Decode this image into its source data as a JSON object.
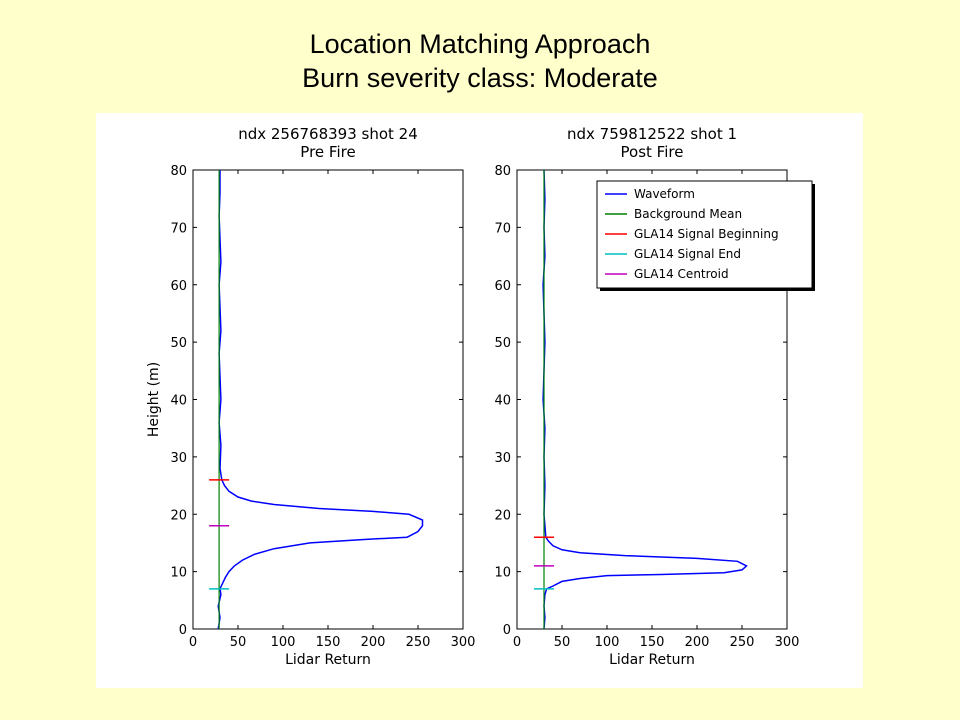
{
  "slide": {
    "title_line1": "Location Matching Approach",
    "title_line2": "Burn severity class: Moderate"
  },
  "colors": {
    "waveform": "#0000ff",
    "background_mean": "#008000",
    "signal_beginning": "#ff0000",
    "signal_end": "#00bfbf",
    "centroid": "#bf00bf"
  },
  "chart_data": [
    {
      "type": "line",
      "title": "ndx 256768393 shot 24",
      "subtitle": "Pre Fire",
      "xlabel": "Lidar Return",
      "ylabel": "Height (m)",
      "xlim": [
        0,
        300
      ],
      "ylim": [
        0,
        80
      ],
      "xticks": [
        "0",
        "50",
        "100",
        "150",
        "200",
        "250",
        "300"
      ],
      "yticks": [
        "0",
        "10",
        "20",
        "30",
        "40",
        "50",
        "60",
        "70",
        "80"
      ],
      "series": [
        {
          "name": "Waveform",
          "points": [
            [
              28,
              0
            ],
            [
              30,
              2
            ],
            [
              28,
              4
            ],
            [
              31,
              6
            ],
            [
              30,
              7
            ],
            [
              33,
              8
            ],
            [
              36,
              9
            ],
            [
              40,
              10
            ],
            [
              46,
              11
            ],
            [
              55,
              12
            ],
            [
              68,
              13
            ],
            [
              90,
              14
            ],
            [
              130,
              15
            ],
            [
              190,
              15.6
            ],
            [
              238,
              16
            ],
            [
              250,
              17
            ],
            [
              255,
              18
            ],
            [
              255,
              19
            ],
            [
              240,
              20
            ],
            [
              200,
              20.5
            ],
            [
              140,
              21
            ],
            [
              90,
              21.7
            ],
            [
              65,
              22.3
            ],
            [
              50,
              23
            ],
            [
              40,
              24
            ],
            [
              35,
              25
            ],
            [
              32,
              26
            ],
            [
              30,
              28
            ],
            [
              31,
              32
            ],
            [
              29,
              36
            ],
            [
              31,
              40
            ],
            [
              30,
              44
            ],
            [
              29,
              48
            ],
            [
              31,
              52
            ],
            [
              30,
              56
            ],
            [
              29,
              60
            ],
            [
              31,
              64
            ],
            [
              30,
              68
            ],
            [
              29,
              72
            ],
            [
              30,
              76
            ],
            [
              30,
              80
            ]
          ]
        },
        {
          "name": "Background Mean",
          "x": 29
        },
        {
          "name": "GLA14 Signal Beginning",
          "x": 29,
          "y": 26
        },
        {
          "name": "GLA14 Signal End",
          "x": 29,
          "y": 7
        },
        {
          "name": "GLA14 Centroid",
          "x": 29,
          "y": 18
        }
      ]
    },
    {
      "type": "line",
      "title": "ndx 759812522 shot 1",
      "subtitle": "Post Fire",
      "xlabel": "Lidar Return",
      "ylabel": "",
      "xlim": [
        0,
        300
      ],
      "ylim": [
        0,
        80
      ],
      "xticks": [
        "0",
        "50",
        "100",
        "150",
        "200",
        "250",
        "300"
      ],
      "yticks": [
        "0",
        "10",
        "20",
        "30",
        "40",
        "50",
        "60",
        "70",
        "80"
      ],
      "legend_position": "top-right",
      "legend": [
        "Waveform",
        "Background Mean",
        "GLA14 Signal Beginning",
        "GLA14 Signal End",
        "GLA14 Centroid"
      ],
      "series": [
        {
          "name": "Waveform",
          "points": [
            [
              30,
              0
            ],
            [
              31,
              2
            ],
            [
              30,
              4
            ],
            [
              31,
              6
            ],
            [
              33,
              7
            ],
            [
              40,
              7.5
            ],
            [
              50,
              8.3
            ],
            [
              70,
              8.8
            ],
            [
              100,
              9.3
            ],
            [
              160,
              9.5
            ],
            [
              230,
              9.8
            ],
            [
              250,
              10.3
            ],
            [
              255,
              11
            ],
            [
              245,
              11.8
            ],
            [
              200,
              12.3
            ],
            [
              120,
              12.8
            ],
            [
              70,
              13.3
            ],
            [
              50,
              13.8
            ],
            [
              40,
              14.5
            ],
            [
              35,
              15.3
            ],
            [
              32,
              16
            ],
            [
              31,
              18
            ],
            [
              30,
              20
            ],
            [
              31,
              25
            ],
            [
              30,
              30
            ],
            [
              31,
              35
            ],
            [
              29,
              40
            ],
            [
              30,
              45
            ],
            [
              31,
              50
            ],
            [
              30,
              55
            ],
            [
              29,
              60
            ],
            [
              31,
              65
            ],
            [
              30,
              70
            ],
            [
              31,
              75
            ],
            [
              30,
              80
            ]
          ]
        },
        {
          "name": "Background Mean",
          "x": 30
        },
        {
          "name": "GLA14 Signal Beginning",
          "x": 30,
          "y": 16
        },
        {
          "name": "GLA14 Signal End",
          "x": 30,
          "y": 7
        },
        {
          "name": "GLA14 Centroid",
          "x": 30,
          "y": 11
        }
      ]
    }
  ]
}
